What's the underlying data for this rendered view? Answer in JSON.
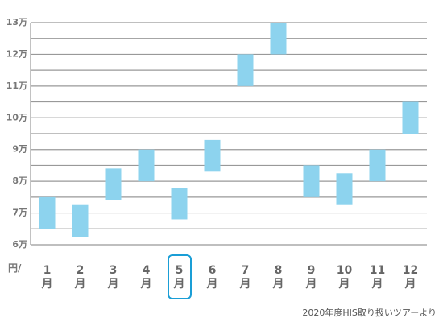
{
  "chart_data": {
    "type": "floating-bar",
    "categories": [
      "1月",
      "2月",
      "3月",
      "4月",
      "5月",
      "6月",
      "7月",
      "8月",
      "9月",
      "10月",
      "11月",
      "12月"
    ],
    "series": [
      {
        "name": "low",
        "values": [
          6.5,
          6.25,
          7.4,
          8,
          6.8,
          8.3,
          11,
          12,
          7.5,
          7.25,
          8,
          9.5
        ]
      },
      {
        "name": "high",
        "values": [
          7.5,
          7.25,
          8.4,
          9,
          7.8,
          9.3,
          12,
          13,
          8.5,
          8.25,
          9,
          10.5
        ]
      }
    ],
    "color": "#8dd3ee",
    "ylim": [
      6,
      13
    ],
    "yticks": [
      {
        "value": 6,
        "label": "6万"
      },
      {
        "value": 7,
        "label": "7万"
      },
      {
        "value": 8,
        "label": "8万"
      },
      {
        "value": 9,
        "label": "9万"
      },
      {
        "value": 10,
        "label": "10万"
      },
      {
        "value": 11,
        "label": "11万"
      },
      {
        "value": 12,
        "label": "12万"
      },
      {
        "value": 13,
        "label": "13万"
      }
    ],
    "minor_yticks": [
      6.5,
      7.5,
      8.5,
      9.5,
      10.5,
      11.5,
      12.5
    ],
    "grid": true,
    "y_unit": "円/",
    "source": "2020年度HIS取り扱いツアーより",
    "highlight_index": 4
  }
}
